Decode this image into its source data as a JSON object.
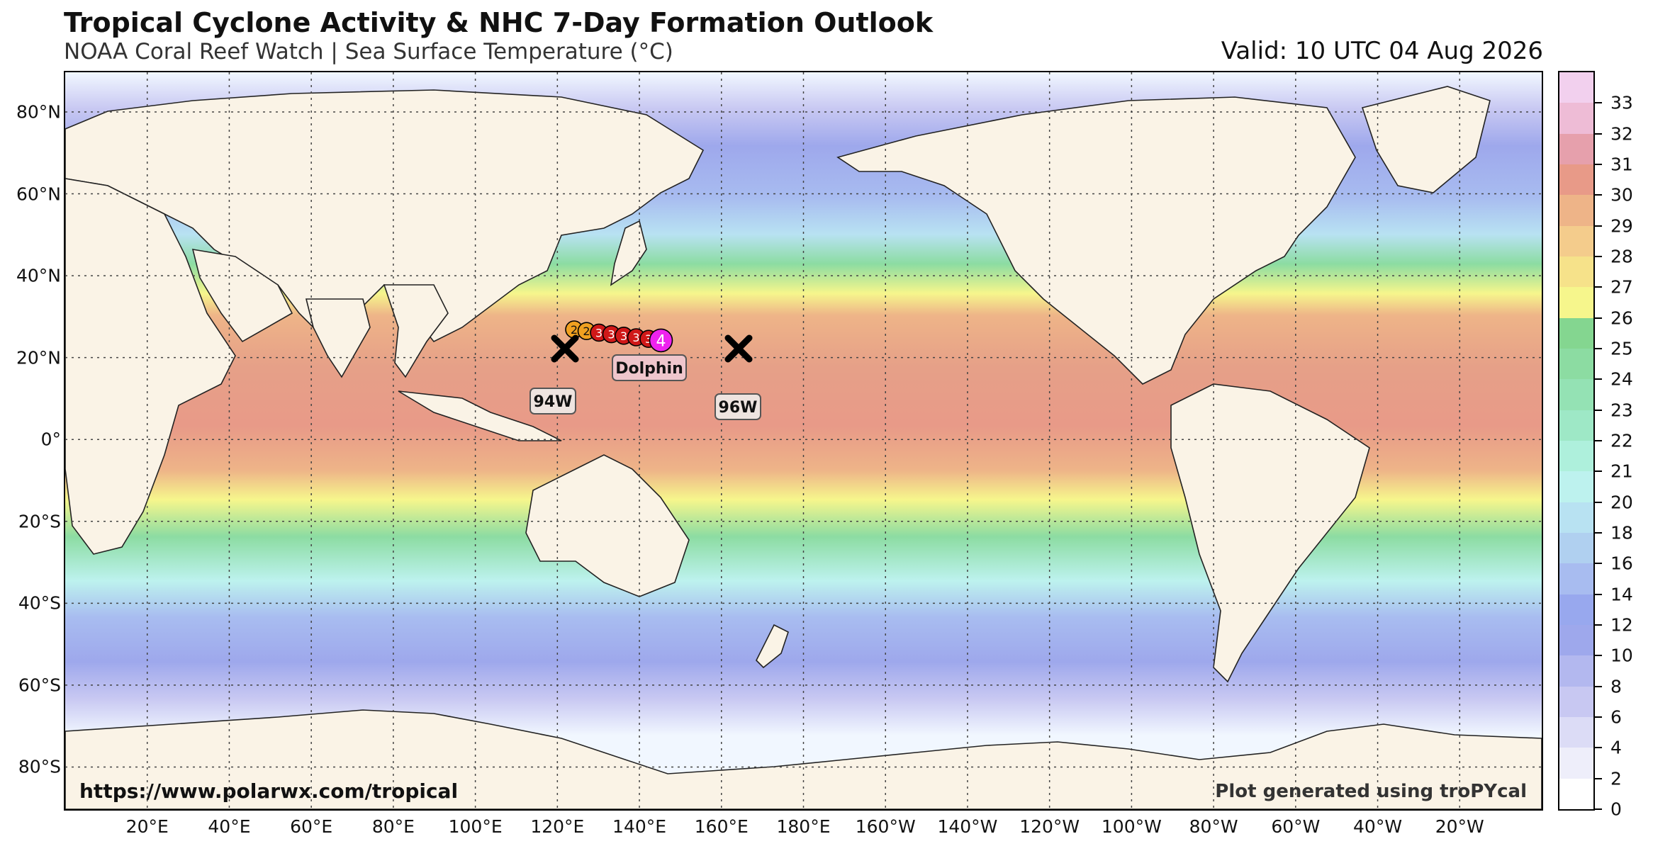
{
  "header": {
    "title": "Tropical Cyclone Activity & NHC 7-Day Formation Outlook",
    "subtitle": "NOAA Coral Reef Watch | Sea Surface Temperature (°C)",
    "valid": "Valid: 10 UTC 04 Aug 2026"
  },
  "map": {
    "lon_labels": [
      "20°E",
      "40°E",
      "60°E",
      "80°E",
      "100°E",
      "120°E",
      "140°E",
      "160°E",
      "180°E",
      "160°W",
      "140°W",
      "120°W",
      "100°W",
      "80°W",
      "60°W",
      "40°W",
      "20°W"
    ],
    "lat_labels": [
      "80°N",
      "60°N",
      "40°N",
      "20°N",
      "0°",
      "20°S",
      "40°S",
      "60°S",
      "80°S"
    ],
    "land_color": "#faf3e6",
    "ocean_cold_color": "#f1f7ff"
  },
  "storms": [
    {
      "name": "Dolphin",
      "track_categories": [
        "2",
        "2",
        "3",
        "3",
        "3",
        "3",
        "3",
        "4"
      ],
      "current_category": "4"
    }
  ],
  "invests": [
    {
      "name": "94W",
      "marker": "x-icon"
    },
    {
      "name": "96W",
      "marker": "x-icon"
    }
  ],
  "colorbar": {
    "labels": [
      "0",
      "2",
      "4",
      "6",
      "8",
      "10",
      "12",
      "14",
      "16",
      "18",
      "20",
      "21",
      "22",
      "23",
      "24",
      "25",
      "26",
      "27",
      "28",
      "29",
      "30",
      "31",
      "32",
      "33"
    ],
    "colors": [
      "#ffffff",
      "#eeeefa",
      "#dcdcf6",
      "#c8c8f2",
      "#b3b8ef",
      "#9ea8ec",
      "#98a8ee",
      "#a8bcf0",
      "#b0d0f0",
      "#b8e2f2",
      "#bdf2ee",
      "#aef0dc",
      "#9ee8c6",
      "#94e2b4",
      "#8cdca2",
      "#84d690",
      "#f6f68c",
      "#f6e28a",
      "#f4cc8c",
      "#eeb488",
      "#e89a88",
      "#e6a0ac",
      "#eebcd6",
      "#f2d0ee"
    ]
  },
  "credits": {
    "left": "https://www.polarwx.com/tropical",
    "right": "Plot generated using troPYcal"
  }
}
